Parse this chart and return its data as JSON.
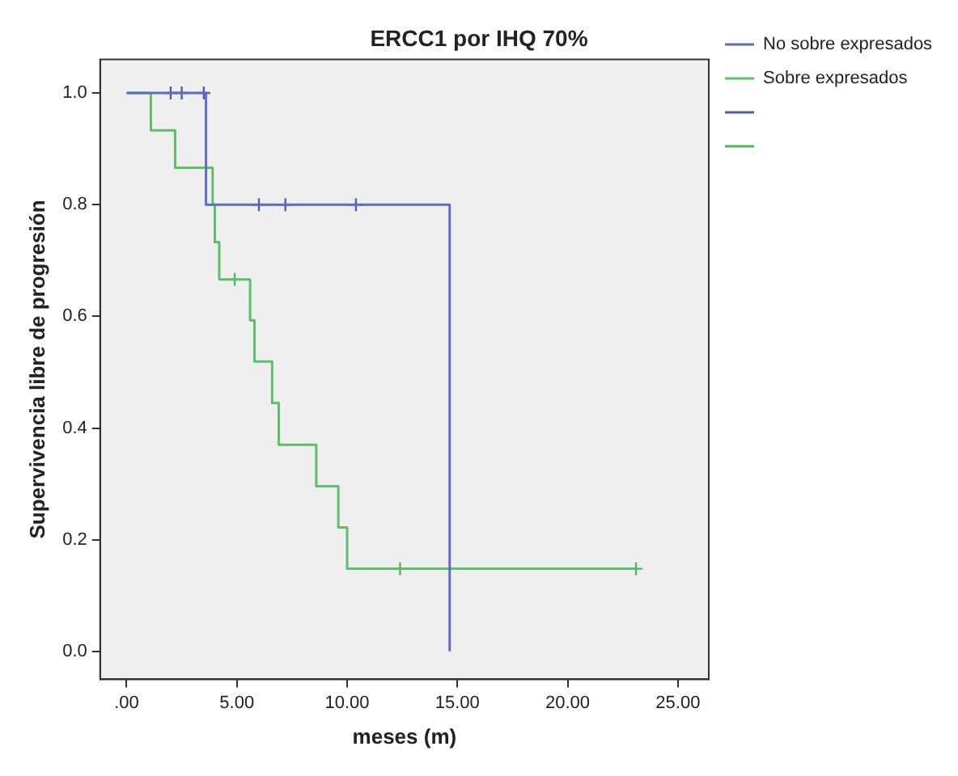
{
  "chart_data": {
    "type": "step",
    "title": "ERCC1 por IHQ 70%",
    "xlabel": "meses (m)",
    "ylabel": "Supervivencia libre de progresión",
    "xlim": [
      -1.2,
      26.4
    ],
    "ylim": [
      -0.05,
      1.06
    ],
    "xticks": [
      {
        "value": 0,
        "label": ".00"
      },
      {
        "value": 5,
        "label": "5.00"
      },
      {
        "value": 10,
        "label": "10.00"
      },
      {
        "value": 15,
        "label": "15.00"
      },
      {
        "value": 20,
        "label": "20.00"
      },
      {
        "value": 25,
        "label": "25.00"
      }
    ],
    "yticks": [
      {
        "value": 0,
        "label": "0.0"
      },
      {
        "value": 0.2,
        "label": "0.2"
      },
      {
        "value": 0.4,
        "label": "0.4"
      },
      {
        "value": 0.6,
        "label": "0.6"
      },
      {
        "value": 0.8,
        "label": "0.8"
      },
      {
        "value": 1,
        "label": "1.0"
      }
    ],
    "grid": false,
    "legend": "top right",
    "series": [
      {
        "name": "No sobre expresados",
        "type": "step",
        "color": "#5b6ec4",
        "x": [
          0,
          3.6,
          14.65
        ],
        "values": [
          1,
          0.8,
          0
        ]
      },
      {
        "name": "Sobre expresados",
        "type": "step",
        "color": "#5cbf6a",
        "x": [
          0,
          1.1,
          2.2,
          3.9,
          4.0,
          4.2,
          5.6,
          5.8,
          6.6,
          6.9,
          8.6,
          9.6,
          10.0,
          23.1
        ],
        "values": [
          1,
          0.933,
          0.866,
          0.8,
          0.733,
          0.666,
          0.593,
          0.519,
          0.445,
          0.37,
          0.296,
          0.222,
          0.148,
          0.148
        ]
      },
      {
        "type": "scatter",
        "marker": "cross",
        "color": "#4a5fb8",
        "x": [
          2.0,
          2.5,
          3.5,
          6.0,
          7.2,
          10.4
        ],
        "values": [
          1,
          1,
          1,
          0.8,
          0.8,
          0.8
        ]
      },
      {
        "type": "scatter",
        "marker": "cross",
        "color": "#4fb85e",
        "x": [
          4.9,
          12.4,
          23.1
        ],
        "values": [
          0.666,
          0.148,
          0.148
        ]
      }
    ]
  }
}
